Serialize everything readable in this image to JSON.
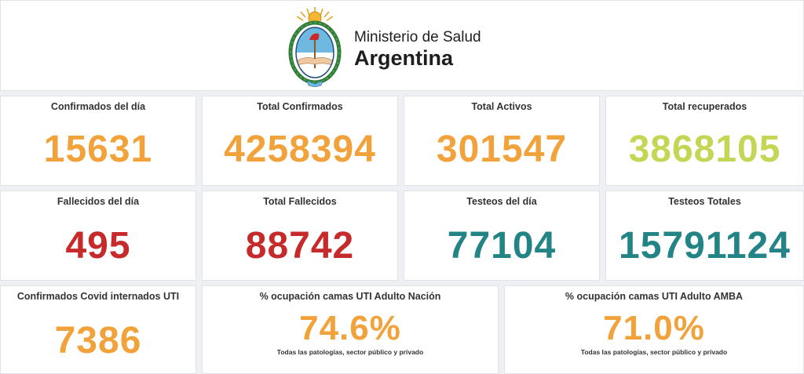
{
  "header": {
    "ministry": "Ministerio de Salud",
    "country": "Argentina",
    "emblem_icon": "argentina-coat-of-arms-icon"
  },
  "colors": {
    "orange": "#f2a23a",
    "green": "#c5d654",
    "red": "#c72a2a",
    "teal": "#238486"
  },
  "cards": {
    "confirmados_dia": {
      "title": "Confirmados del día",
      "value": "15631"
    },
    "total_confirmados": {
      "title": "Total Confirmados",
      "value": "4258394"
    },
    "total_activos": {
      "title": "Total Activos",
      "value": "301547"
    },
    "total_recuperados": {
      "title": "Total recuperados",
      "value": "3868105"
    },
    "fallecidos_dia": {
      "title": "Fallecidos del día",
      "value": "495"
    },
    "total_fallecidos": {
      "title": "Total Fallecidos",
      "value": "88742"
    },
    "testeos_dia": {
      "title": "Testeos del día",
      "value": "77104"
    },
    "testeos_totales": {
      "title": "Testeos Totales",
      "value": "15791124"
    },
    "internados_uti": {
      "title": "Confirmados Covid internados UTI",
      "value": "7386"
    },
    "ocupacion_nacion": {
      "title": "% ocupación camas UTI Adulto Nación",
      "value": "74.6%",
      "note": "Todas las patologías, sector público y privado"
    },
    "ocupacion_amba": {
      "title": "% ocupación camas UTI Adulto AMBA",
      "value": "71.0%",
      "note": "Todas las patologías, sector público y privado"
    }
  }
}
